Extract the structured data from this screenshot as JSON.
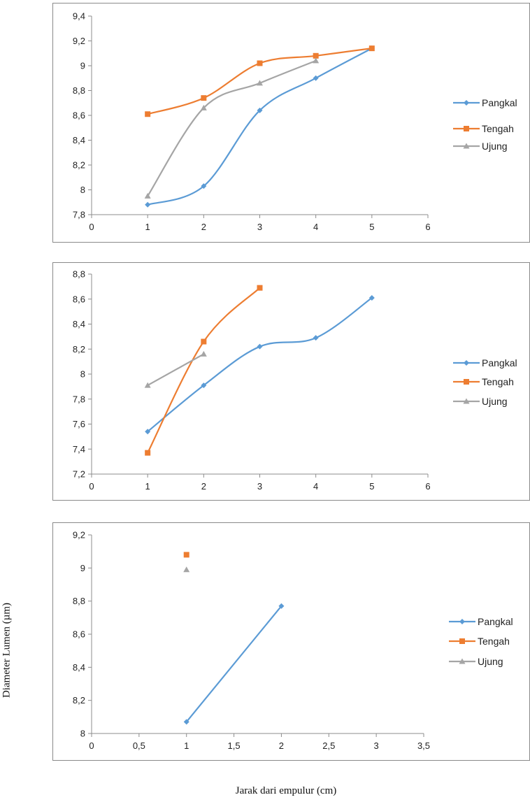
{
  "ylabel": "Diameter Lumen (µm)",
  "xlabel": "Jarak dari empulur (cm)",
  "colors": {
    "Pangkal": "#5b9bd5",
    "Tengah": "#ed7d31",
    "Ujung": "#a5a5a5"
  },
  "chart_data": [
    {
      "type": "line",
      "xlim": [
        0,
        6
      ],
      "ylim": [
        7.8,
        9.4
      ],
      "xticks": [
        0,
        1,
        2,
        3,
        4,
        5,
        6
      ],
      "xtick_labels": [
        "0",
        "1",
        "2",
        "3",
        "4",
        "5",
        "6"
      ],
      "yticks": [
        7.8,
        8,
        8.2,
        8.4,
        8.6,
        8.8,
        9,
        9.2,
        9.4
      ],
      "ytick_labels": [
        "7,8",
        "8",
        "8,2",
        "8,4",
        "8,6",
        "8,8",
        "9",
        "9,2",
        "9,4"
      ],
      "legend": "right",
      "series": [
        {
          "name": "Pangkal",
          "marker": "diamond",
          "x": [
            1,
            2,
            3,
            4,
            5
          ],
          "y": [
            7.88,
            8.03,
            8.64,
            8.9,
            9.14
          ]
        },
        {
          "name": "Tengah",
          "marker": "square",
          "x": [
            1,
            2,
            3,
            4,
            5
          ],
          "y": [
            8.61,
            8.74,
            9.02,
            9.08,
            9.14
          ]
        },
        {
          "name": "Ujung",
          "marker": "triangle",
          "x": [
            1,
            2,
            3,
            4
          ],
          "y": [
            7.95,
            8.66,
            8.86,
            9.04
          ]
        }
      ]
    },
    {
      "type": "line",
      "xlim": [
        0,
        6
      ],
      "ylim": [
        7.2,
        8.8
      ],
      "xticks": [
        0,
        1,
        2,
        3,
        4,
        5,
        6
      ],
      "xtick_labels": [
        "0",
        "1",
        "2",
        "3",
        "4",
        "5",
        "6"
      ],
      "yticks": [
        7.2,
        7.4,
        7.6,
        7.8,
        8,
        8.2,
        8.4,
        8.6,
        8.8
      ],
      "ytick_labels": [
        "7,2",
        "7,4",
        "7,6",
        "7,8",
        "8",
        "8,2",
        "8,4",
        "8,6",
        "8,8"
      ],
      "legend": "right",
      "series": [
        {
          "name": "Pangkal",
          "marker": "diamond",
          "x": [
            1,
            2,
            3,
            4,
            5
          ],
          "y": [
            7.54,
            7.91,
            8.22,
            8.29,
            8.61
          ]
        },
        {
          "name": "Tengah",
          "marker": "square",
          "x": [
            1,
            2,
            3
          ],
          "y": [
            7.37,
            8.26,
            8.69
          ]
        },
        {
          "name": "Ujung",
          "marker": "triangle",
          "x": [
            1,
            2
          ],
          "y": [
            7.91,
            8.16
          ]
        }
      ]
    },
    {
      "type": "line",
      "xlim": [
        0,
        3.5
      ],
      "ylim": [
        8,
        9.2
      ],
      "xticks": [
        0,
        0.5,
        1,
        1.5,
        2,
        2.5,
        3,
        3.5
      ],
      "xtick_labels": [
        "0",
        "0,5",
        "1",
        "1,5",
        "2",
        "2,5",
        "3",
        "3,5"
      ],
      "yticks": [
        8,
        8.2,
        8.4,
        8.6,
        8.8,
        9,
        9.2
      ],
      "ytick_labels": [
        "8",
        "8,2",
        "8,4",
        "8,6",
        "8,8",
        "9",
        "9,2"
      ],
      "legend": "right",
      "series": [
        {
          "name": "Pangkal",
          "marker": "diamond",
          "x": [
            1,
            2
          ],
          "y": [
            8.07,
            8.77
          ]
        },
        {
          "name": "Tengah",
          "marker": "square",
          "x": [
            1
          ],
          "y": [
            9.08
          ]
        },
        {
          "name": "Ujung",
          "marker": "triangle",
          "x": [
            1
          ],
          "y": [
            8.99
          ]
        }
      ]
    }
  ]
}
